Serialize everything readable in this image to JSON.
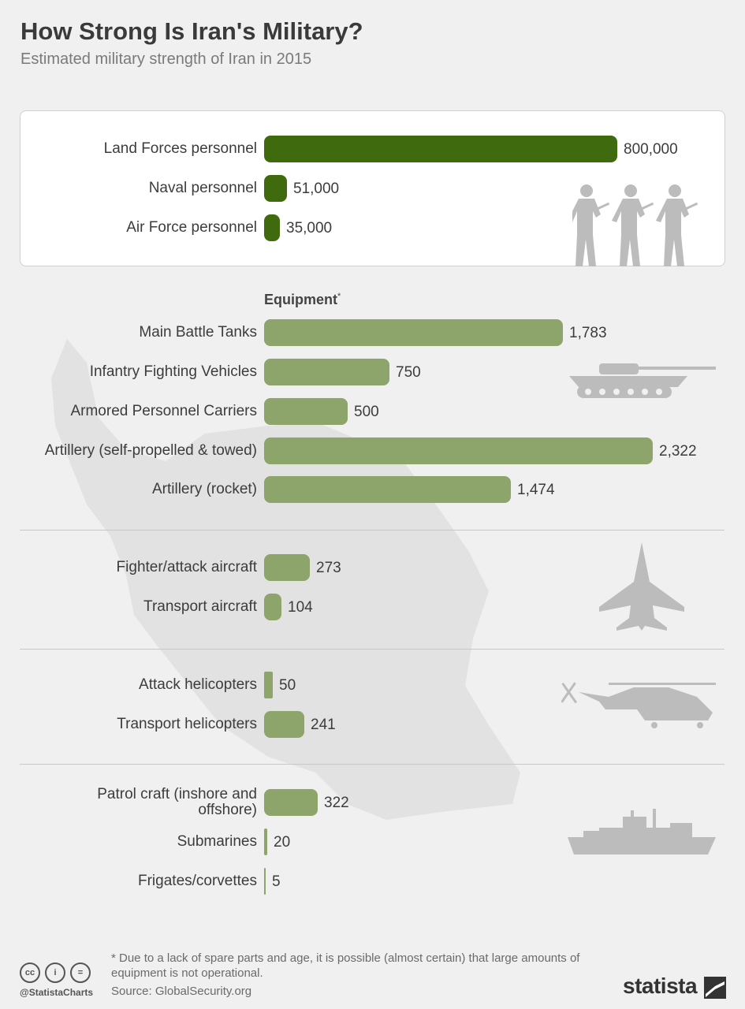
{
  "header": {
    "title": "How Strong Is Iran's Military?",
    "subtitle": "Estimated military strength of Iran in 2015"
  },
  "chart_data": {
    "type": "bar",
    "orientation": "horizontal",
    "max_value_reference": 800000,
    "groups": [
      {
        "id": "personnel",
        "heading": "",
        "scale_max": 800000,
        "color": "#3f6a0e",
        "icon": "soldiers-icon",
        "categories": [
          "Land Forces personnel",
          "Naval personnel",
          "Air Force personnel"
        ],
        "values": [
          800000,
          51000,
          35000
        ],
        "value_labels": [
          "800,000",
          "51,000",
          "35,000"
        ]
      },
      {
        "id": "ground-equipment",
        "heading": "Equipment",
        "heading_mark": "*",
        "scale_max": 2322,
        "color": "#8da56a",
        "icon": "tank-icon",
        "categories": [
          "Main Battle Tanks",
          "Infantry Fighting Vehicles",
          "Armored Personnel Carriers",
          "Artillery (self-propelled & towed)",
          "Artillery (rocket)"
        ],
        "values": [
          1783,
          750,
          500,
          2322,
          1474
        ],
        "value_labels": [
          "1,783",
          "750",
          "500",
          "2,322",
          "1,474"
        ]
      },
      {
        "id": "aircraft",
        "scale_max": 2322,
        "color": "#8da56a",
        "icon": "fighter-jet-icon",
        "categories": [
          "Fighter/attack aircraft",
          "Transport aircraft"
        ],
        "values": [
          273,
          104
        ],
        "value_labels": [
          "273",
          "104"
        ]
      },
      {
        "id": "helicopters",
        "scale_max": 2322,
        "color": "#8da56a",
        "icon": "helicopter-icon",
        "categories": [
          "Attack helicopters",
          "Transport helicopters"
        ],
        "values": [
          50,
          241
        ],
        "value_labels": [
          "50",
          "241"
        ]
      },
      {
        "id": "naval",
        "scale_max": 2322,
        "color": "#8da56a",
        "icon": "warship-icon",
        "categories": [
          "Patrol craft (inshore and offshore)",
          "Submarines",
          "Frigates/corvettes"
        ],
        "values": [
          322,
          20,
          5
        ],
        "value_labels": [
          "322",
          "20",
          "5"
        ]
      }
    ]
  },
  "footer": {
    "footnote": "* Due to a lack of spare parts and age, it is possible (almost certain) that large amounts of equipment is not operational.",
    "source": "Source: GlobalSecurity.org",
    "handle": "@StatistaCharts",
    "brand": "statista",
    "license_icons": [
      "cc",
      "i",
      "="
    ]
  },
  "colors": {
    "personnel_bar": "#3f6a0e",
    "equipment_bar": "#8da56a",
    "silhouette": "#bcbcbc",
    "map": "#e2e2e2"
  }
}
